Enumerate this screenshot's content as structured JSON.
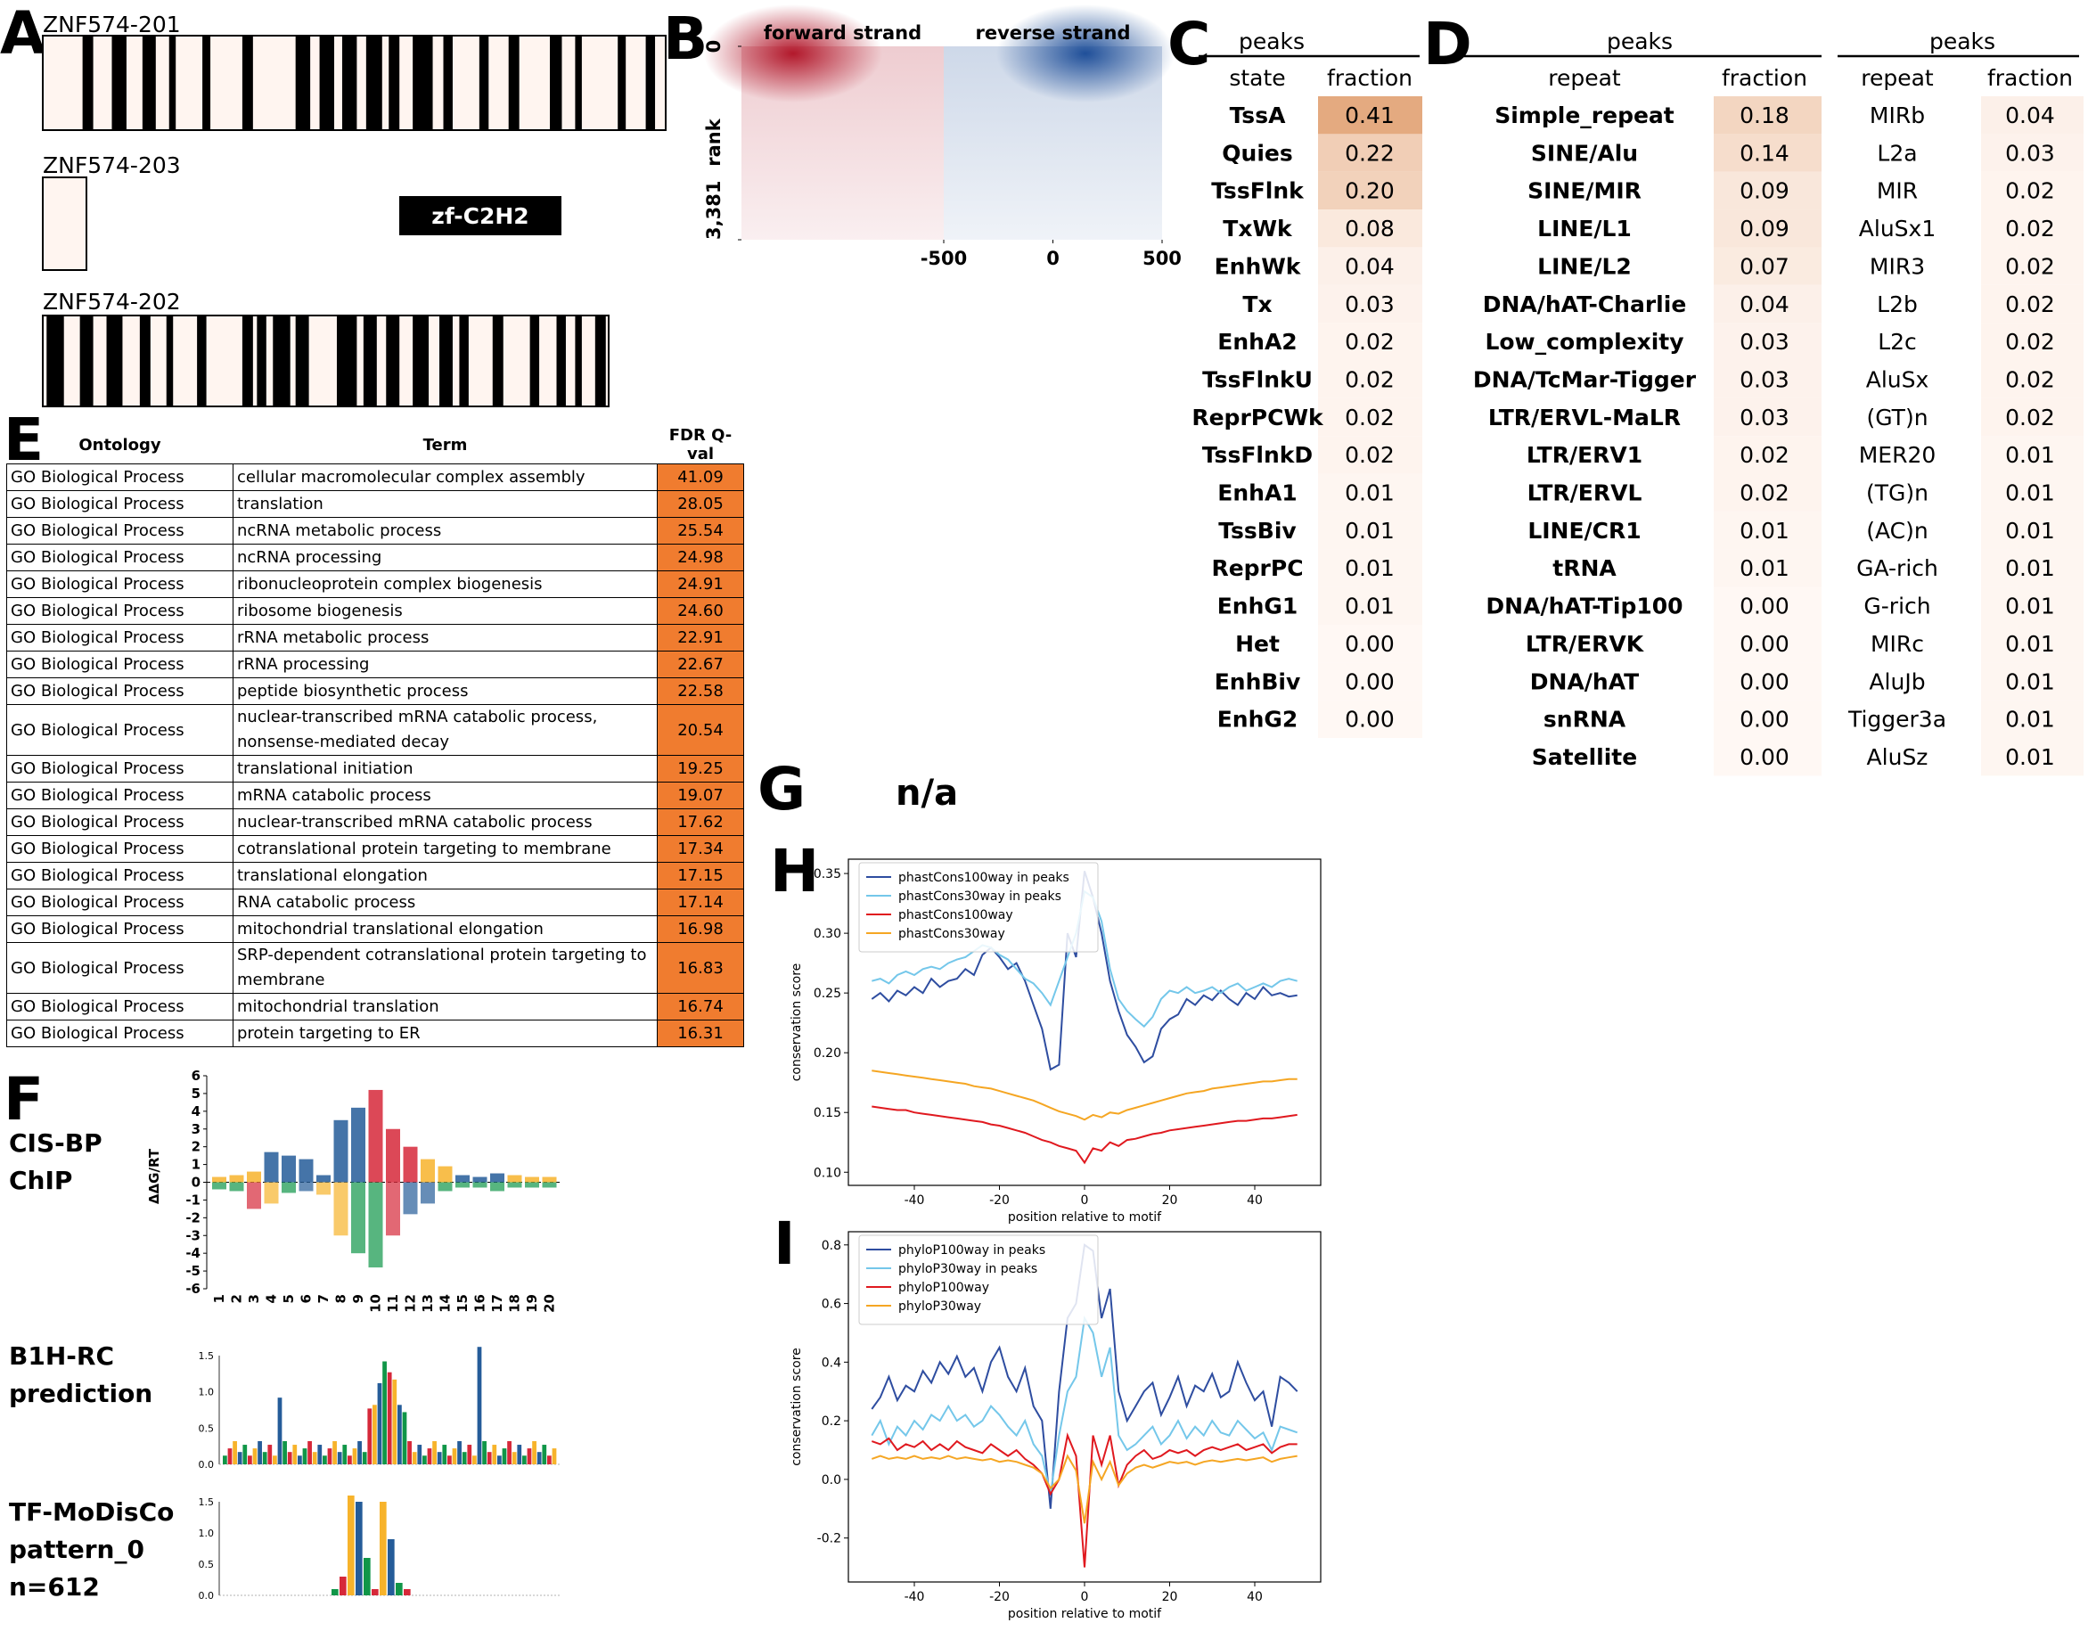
{
  "panel_labels": [
    "A",
    "B",
    "C",
    "D",
    "E",
    "F",
    "G",
    "H",
    "I"
  ],
  "transcripts": {
    "names": [
      "ZNF574-201",
      "ZNF574-203",
      "ZNF574-202"
    ],
    "domain": "zf-C2H2"
  },
  "state_table": {
    "title": "peaks",
    "header": [
      "state",
      "fraction"
    ],
    "rows": [
      [
        "TssA",
        "0.41"
      ],
      [
        "Quies",
        "0.22"
      ],
      [
        "TssFlnk",
        "0.20"
      ],
      [
        "TxWk",
        "0.08"
      ],
      [
        "EnhWk",
        "0.04"
      ],
      [
        "Tx",
        "0.03"
      ],
      [
        "EnhA2",
        "0.02"
      ],
      [
        "TssFlnkU",
        "0.02"
      ],
      [
        "ReprPCWk",
        "0.02"
      ],
      [
        "TssFlnkD",
        "0.02"
      ],
      [
        "EnhA1",
        "0.01"
      ],
      [
        "TssBiv",
        "0.01"
      ],
      [
        "ReprPC",
        "0.01"
      ],
      [
        "EnhG1",
        "0.01"
      ],
      [
        "Het",
        "0.00"
      ],
      [
        "EnhBiv",
        "0.00"
      ],
      [
        "EnhG2",
        "0.00"
      ]
    ]
  },
  "repeat_tables": [
    {
      "title": "peaks",
      "header": [
        "repeat",
        "fraction"
      ],
      "rows": [
        [
          "Simple_repeat",
          "0.18"
        ],
        [
          "SINE/Alu",
          "0.14"
        ],
        [
          "SINE/MIR",
          "0.09"
        ],
        [
          "LINE/L1",
          "0.09"
        ],
        [
          "LINE/L2",
          "0.07"
        ],
        [
          "DNA/hAT-Charlie",
          "0.04"
        ],
        [
          "Low_complexity",
          "0.03"
        ],
        [
          "DNA/TcMar-Tigger",
          "0.03"
        ],
        [
          "LTR/ERVL-MaLR",
          "0.03"
        ],
        [
          "LTR/ERV1",
          "0.02"
        ],
        [
          "LTR/ERVL",
          "0.02"
        ],
        [
          "LINE/CR1",
          "0.01"
        ],
        [
          "tRNA",
          "0.01"
        ],
        [
          "DNA/hAT-Tip100",
          "0.00"
        ],
        [
          "LTR/ERVK",
          "0.00"
        ],
        [
          "DNA/hAT",
          "0.00"
        ],
        [
          "snRNA",
          "0.00"
        ],
        [
          "Satellite",
          "0.00"
        ]
      ]
    },
    {
      "title": "peaks",
      "header": [
        "repeat",
        "fraction"
      ],
      "rows": [
        [
          "MIRb",
          "0.04"
        ],
        [
          "L2a",
          "0.03"
        ],
        [
          "MIR",
          "0.02"
        ],
        [
          "AluSx1",
          "0.02"
        ],
        [
          "MIR3",
          "0.02"
        ],
        [
          "L2b",
          "0.02"
        ],
        [
          "L2c",
          "0.02"
        ],
        [
          "AluSx",
          "0.02"
        ],
        [
          "(GT)n",
          "0.02"
        ],
        [
          "MER20",
          "0.01"
        ],
        [
          "(TG)n",
          "0.01"
        ],
        [
          "(AC)n",
          "0.01"
        ],
        [
          "GA-rich",
          "0.01"
        ],
        [
          "G-rich",
          "0.01"
        ],
        [
          "MIRc",
          "0.01"
        ],
        [
          "AluJb",
          "0.01"
        ],
        [
          "Tigger3a",
          "0.01"
        ],
        [
          "AluSz",
          "0.01"
        ]
      ]
    }
  ],
  "go_table": {
    "header": [
      "Ontology",
      "Term",
      "FDR Q-val"
    ],
    "rows": [
      [
        "GO Biological Process",
        "cellular macromolecular complex assembly",
        "41.09"
      ],
      [
        "GO Biological Process",
        "translation",
        "28.05"
      ],
      [
        "GO Biological Process",
        "ncRNA metabolic process",
        "25.54"
      ],
      [
        "GO Biological Process",
        "ncRNA processing",
        "24.98"
      ],
      [
        "GO Biological Process",
        "ribonucleoprotein complex biogenesis",
        "24.91"
      ],
      [
        "GO Biological Process",
        "ribosome biogenesis",
        "24.60"
      ],
      [
        "GO Biological Process",
        "rRNA metabolic process",
        "22.91"
      ],
      [
        "GO Biological Process",
        "rRNA processing",
        "22.67"
      ],
      [
        "GO Biological Process",
        "peptide biosynthetic process",
        "22.58"
      ],
      [
        "GO Biological Process",
        "nuclear-transcribed mRNA catabolic process, nonsense-mediated decay",
        "20.54"
      ],
      [
        "GO Biological Process",
        "translational initiation",
        "19.25"
      ],
      [
        "GO Biological Process",
        "mRNA catabolic process",
        "19.07"
      ],
      [
        "GO Biological Process",
        "nuclear-transcribed mRNA catabolic process",
        "17.62"
      ],
      [
        "GO Biological Process",
        "cotranslational protein targeting to membrane",
        "17.34"
      ],
      [
        "GO Biological Process",
        "translational elongation",
        "17.15"
      ],
      [
        "GO Biological Process",
        "RNA catabolic process",
        "17.14"
      ],
      [
        "GO Biological Process",
        "mitochondrial translational elongation",
        "16.98"
      ],
      [
        "GO Biological Process",
        "SRP-dependent cotranslational protein targeting to membrane",
        "16.83"
      ],
      [
        "GO Biological Process",
        "mitochondrial translation",
        "16.74"
      ],
      [
        "GO Biological Process",
        "protein targeting to ER",
        "16.31"
      ]
    ]
  },
  "motif_logos": [
    {
      "name": [
        "CIS-BP",
        "ChIP"
      ],
      "ylabel": "ΔΔG/RT",
      "yticks": [
        "6",
        "5",
        "4",
        "3",
        "2",
        "1",
        "0",
        "-1",
        "-2",
        "-3",
        "-4",
        "-5",
        "-6"
      ],
      "xticks": [
        "1",
        "2",
        "3",
        "4",
        "5",
        "6",
        "7",
        "8",
        "9",
        "10",
        "11",
        "12",
        "13",
        "14",
        "15",
        "16",
        "17",
        "18",
        "19",
        "20"
      ]
    },
    {
      "name": [
        "B1H-RC",
        "prediction"
      ],
      "yticks": [
        "1.5",
        "1.0",
        "0.5",
        "0.0"
      ]
    },
    {
      "name": [
        "TF-MoDisCo",
        "pattern_0",
        "n=612"
      ],
      "yticks": [
        "1.5",
        "1.0",
        "0.5",
        "0.0"
      ]
    }
  ],
  "panel_g": "n/a",
  "chart_data": [
    {
      "type": "heatmap",
      "panels": [
        "forward strand",
        "reverse strand"
      ],
      "ylabel": "rank",
      "xlim": [
        -500,
        500
      ],
      "xticks": [
        -500,
        0,
        500
      ],
      "ylim": [
        0,
        3381
      ],
      "yticks": [
        0,
        {
          "value": 3381,
          "label": "3,381"
        }
      ],
      "colors": [
        "#b2182b",
        "#1f4f99"
      ]
    },
    {
      "type": "line",
      "ylabel": "conservation score",
      "xlabel": "position relative to motif",
      "legend": "upper left",
      "x": [
        -50,
        -48,
        -46,
        -44,
        -42,
        -40,
        -38,
        -36,
        -34,
        -32,
        -30,
        -28,
        -26,
        -24,
        -22,
        -20,
        -18,
        -16,
        -14,
        -12,
        -10,
        -8,
        -6,
        -4,
        -2,
        0,
        2,
        4,
        6,
        8,
        10,
        12,
        14,
        16,
        18,
        20,
        22,
        24,
        26,
        28,
        30,
        32,
        34,
        36,
        38,
        40,
        42,
        44,
        46,
        48,
        50
      ],
      "xlim": [
        -55.5,
        55.5
      ],
      "xticks": [
        -40,
        -20,
        0,
        20,
        40
      ],
      "ylim": [
        0.089,
        0.362
      ],
      "yticks": [
        {
          "value": 0.1,
          "label": "0.10"
        },
        0.15,
        {
          "value": 0.2,
          "label": "0.20"
        },
        0.25,
        {
          "value": 0.3,
          "label": "0.30"
        },
        0.35
      ],
      "series": [
        {
          "name": "phastCons100way in peaks",
          "color": "#2e4da0",
          "values": [
            0.245,
            0.25,
            0.243,
            0.252,
            0.248,
            0.255,
            0.25,
            0.262,
            0.255,
            0.26,
            0.262,
            0.27,
            0.265,
            0.282,
            0.288,
            0.28,
            0.27,
            0.275,
            0.26,
            0.24,
            0.22,
            0.186,
            0.19,
            0.3,
            0.28,
            0.352,
            0.33,
            0.3,
            0.26,
            0.235,
            0.215,
            0.205,
            0.192,
            0.197,
            0.22,
            0.228,
            0.232,
            0.245,
            0.24,
            0.248,
            0.244,
            0.252,
            0.245,
            0.24,
            0.25,
            0.245,
            0.255,
            0.248,
            0.25,
            0.247,
            0.248
          ]
        },
        {
          "name": "phastCons30way in peaks",
          "color": "#74c7ea",
          "values": [
            0.26,
            0.262,
            0.258,
            0.265,
            0.268,
            0.265,
            0.27,
            0.272,
            0.27,
            0.275,
            0.278,
            0.28,
            0.285,
            0.29,
            0.288,
            0.282,
            0.278,
            0.27,
            0.262,
            0.258,
            0.25,
            0.24,
            0.26,
            0.28,
            0.3,
            0.335,
            0.33,
            0.31,
            0.27,
            0.245,
            0.235,
            0.228,
            0.222,
            0.23,
            0.245,
            0.252,
            0.25,
            0.255,
            0.25,
            0.252,
            0.255,
            0.25,
            0.255,
            0.258,
            0.252,
            0.255,
            0.258,
            0.255,
            0.26,
            0.262,
            0.26
          ]
        },
        {
          "name": "phastCons100way",
          "color": "#e0191f",
          "values": [
            0.155,
            0.154,
            0.153,
            0.152,
            0.152,
            0.15,
            0.149,
            0.148,
            0.147,
            0.146,
            0.145,
            0.144,
            0.143,
            0.142,
            0.14,
            0.139,
            0.137,
            0.135,
            0.133,
            0.13,
            0.127,
            0.125,
            0.122,
            0.12,
            0.118,
            0.108,
            0.12,
            0.118,
            0.125,
            0.122,
            0.127,
            0.128,
            0.13,
            0.132,
            0.133,
            0.135,
            0.136,
            0.137,
            0.138,
            0.139,
            0.14,
            0.141,
            0.142,
            0.143,
            0.143,
            0.144,
            0.145,
            0.145,
            0.146,
            0.147,
            0.148
          ]
        },
        {
          "name": "phastCons30way",
          "color": "#f5a623",
          "values": [
            0.185,
            0.184,
            0.183,
            0.182,
            0.181,
            0.18,
            0.179,
            0.178,
            0.177,
            0.176,
            0.175,
            0.174,
            0.172,
            0.171,
            0.17,
            0.168,
            0.166,
            0.164,
            0.162,
            0.16,
            0.157,
            0.154,
            0.151,
            0.149,
            0.147,
            0.144,
            0.148,
            0.146,
            0.15,
            0.149,
            0.152,
            0.154,
            0.156,
            0.158,
            0.16,
            0.162,
            0.164,
            0.166,
            0.167,
            0.168,
            0.17,
            0.171,
            0.172,
            0.173,
            0.174,
            0.175,
            0.176,
            0.176,
            0.177,
            0.178,
            0.178
          ]
        }
      ]
    },
    {
      "type": "line",
      "ylabel": "conservation score",
      "xlabel": "position relative to motif",
      "legend": "upper left",
      "x": [
        -50,
        -48,
        -46,
        -44,
        -42,
        -40,
        -38,
        -36,
        -34,
        -32,
        -30,
        -28,
        -26,
        -24,
        -22,
        -20,
        -18,
        -16,
        -14,
        -12,
        -10,
        -8,
        -6,
        -4,
        -2,
        0,
        2,
        4,
        6,
        8,
        10,
        12,
        14,
        16,
        18,
        20,
        22,
        24,
        26,
        28,
        30,
        32,
        34,
        36,
        38,
        40,
        42,
        44,
        46,
        48,
        50
      ],
      "xlim": [
        -55.5,
        55.5
      ],
      "xticks": [
        -40,
        -20,
        0,
        20,
        40
      ],
      "ylim": [
        -0.35,
        0.845
      ],
      "yticks": [
        -0.2,
        {
          "value": 0,
          "label": "0.0"
        },
        0.2,
        0.4,
        0.6,
        0.8
      ],
      "series": [
        {
          "name": "phyloP100way in peaks",
          "color": "#2e4da0",
          "values": [
            0.24,
            0.28,
            0.35,
            0.27,
            0.32,
            0.3,
            0.37,
            0.33,
            0.4,
            0.36,
            0.42,
            0.35,
            0.38,
            0.3,
            0.4,
            0.45,
            0.35,
            0.3,
            0.38,
            0.25,
            0.2,
            -0.1,
            0.3,
            0.55,
            0.6,
            0.8,
            0.78,
            0.55,
            0.65,
            0.3,
            0.2,
            0.25,
            0.3,
            0.33,
            0.22,
            0.28,
            0.35,
            0.25,
            0.32,
            0.3,
            0.36,
            0.28,
            0.3,
            0.4,
            0.33,
            0.27,
            0.3,
            0.18,
            0.35,
            0.33,
            0.3
          ]
        },
        {
          "name": "phyloP30way in peaks",
          "color": "#74c7ea",
          "values": [
            0.15,
            0.2,
            0.12,
            0.18,
            0.15,
            0.2,
            0.17,
            0.22,
            0.2,
            0.25,
            0.2,
            0.22,
            0.18,
            0.2,
            0.25,
            0.22,
            0.18,
            0.15,
            0.2,
            0.12,
            0.08,
            -0.05,
            0.15,
            0.3,
            0.35,
            0.55,
            0.5,
            0.35,
            0.45,
            0.15,
            0.1,
            0.12,
            0.15,
            0.18,
            0.12,
            0.15,
            0.2,
            0.14,
            0.18,
            0.15,
            0.2,
            0.16,
            0.15,
            0.2,
            0.17,
            0.14,
            0.16,
            0.1,
            0.18,
            0.17,
            0.16
          ]
        },
        {
          "name": "phyloP100way",
          "color": "#e0191f",
          "values": [
            0.13,
            0.12,
            0.14,
            0.1,
            0.12,
            0.11,
            0.13,
            0.1,
            0.12,
            0.1,
            0.13,
            0.11,
            0.1,
            0.09,
            0.12,
            0.1,
            0.08,
            0.1,
            0.07,
            0.05,
            0.02,
            -0.05,
            0,
            0.15,
            0.08,
            -0.3,
            0.15,
            0.05,
            0.15,
            -0.02,
            0.05,
            0.08,
            0.1,
            0.07,
            0.08,
            0.1,
            0.09,
            0.1,
            0.08,
            0.1,
            0.11,
            0.1,
            0.11,
            0.12,
            0.1,
            0.11,
            0.12,
            0.09,
            0.11,
            0.12,
            0.12
          ]
        },
        {
          "name": "phyloP30way",
          "color": "#f5a623",
          "values": [
            0.07,
            0.08,
            0.07,
            0.075,
            0.07,
            0.08,
            0.07,
            0.075,
            0.07,
            0.08,
            0.07,
            0.075,
            0.07,
            0.065,
            0.07,
            0.06,
            0.065,
            0.06,
            0.05,
            0.04,
            0.02,
            -0.03,
            0,
            0.08,
            0.03,
            -0.15,
            0.06,
            0,
            0.06,
            -0.02,
            0.02,
            0.04,
            0.05,
            0.04,
            0.05,
            0.06,
            0.055,
            0.06,
            0.05,
            0.06,
            0.065,
            0.06,
            0.065,
            0.07,
            0.065,
            0.07,
            0.075,
            0.06,
            0.07,
            0.075,
            0.08
          ]
        }
      ]
    }
  ]
}
